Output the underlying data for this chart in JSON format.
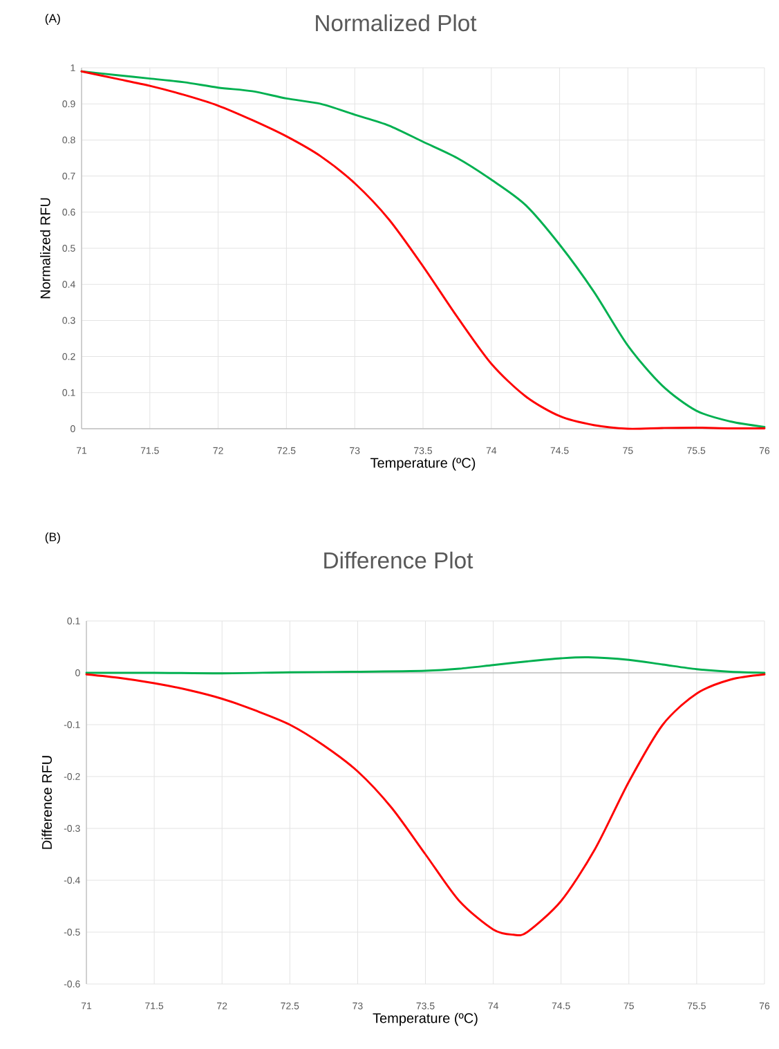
{
  "chart_data": [
    {
      "type": "line",
      "title": "Normalized Plot",
      "xlabel": "Temperature (ºC)",
      "ylabel": "Normalized RFU",
      "annotations": [
        "(A)"
      ],
      "xlim": [
        71,
        76
      ],
      "xticks": [
        71,
        71.5,
        72,
        72.5,
        73,
        73.5,
        74,
        74.5,
        75,
        75.5,
        76
      ],
      "ylim": [
        0,
        1
      ],
      "yticks": [
        0,
        0.1,
        0.2,
        0.3,
        0.4,
        0.5,
        0.6,
        0.7,
        0.8,
        0.9,
        1
      ],
      "grid": true,
      "x": [
        71,
        71.25,
        71.5,
        71.75,
        72,
        72.25,
        72.5,
        72.75,
        73,
        73.25,
        73.5,
        73.75,
        74,
        74.25,
        74.5,
        74.75,
        75,
        75.25,
        75.5,
        75.75,
        76
      ],
      "series": [
        {
          "color": "#00b050",
          "values": [
            0.99,
            0.98,
            0.97,
            0.96,
            0.945,
            0.935,
            0.915,
            0.9,
            0.87,
            0.84,
            0.795,
            0.75,
            0.69,
            0.62,
            0.51,
            0.38,
            0.23,
            0.12,
            0.05,
            0.02,
            0.005
          ]
        },
        {
          "color": "#ff0000",
          "values": [
            0.99,
            0.97,
            0.95,
            0.925,
            0.895,
            0.855,
            0.81,
            0.755,
            0.68,
            0.58,
            0.45,
            0.31,
            0.18,
            0.09,
            0.035,
            0.01,
            0.0,
            0.002,
            0.003,
            0.001,
            0.001
          ]
        }
      ]
    },
    {
      "type": "line",
      "title": "Difference Plot",
      "xlabel": "Temperature (ºC)",
      "ylabel": "Difference RFU",
      "annotations": [
        "(B)"
      ],
      "xlim": [
        71,
        76
      ],
      "xticks": [
        71,
        71.5,
        72,
        72.5,
        73,
        73.5,
        74,
        74.5,
        75,
        75.5,
        76
      ],
      "ylim": [
        -0.6,
        0.1
      ],
      "yticks": [
        -0.6,
        -0.5,
        -0.4,
        -0.3,
        -0.2,
        -0.1,
        0,
        0.1
      ],
      "grid": true,
      "series": [
        {
          "color": "#00b050",
          "x": [
            71,
            71.5,
            72,
            72.5,
            73,
            73.5,
            73.75,
            74,
            74.25,
            74.5,
            74.7,
            75,
            75.25,
            75.5,
            75.75,
            76
          ],
          "values": [
            0,
            0,
            -0.001,
            0.001,
            0.002,
            0.004,
            0.008,
            0.015,
            0.022,
            0.028,
            0.03,
            0.025,
            0.016,
            0.007,
            0.002,
            0
          ]
        },
        {
          "color": "#ff0000",
          "x": [
            71,
            71.25,
            71.5,
            71.75,
            72,
            72.25,
            72.5,
            72.75,
            73,
            73.25,
            73.5,
            73.75,
            74,
            74.15,
            74.25,
            74.5,
            74.75,
            75,
            75.25,
            75.5,
            75.75,
            76
          ],
          "values": [
            -0.003,
            -0.01,
            -0.02,
            -0.033,
            -0.05,
            -0.073,
            -0.1,
            -0.14,
            -0.19,
            -0.26,
            -0.35,
            -0.44,
            -0.495,
            -0.505,
            -0.5,
            -0.44,
            -0.34,
            -0.21,
            -0.1,
            -0.04,
            -0.013,
            -0.003
          ]
        }
      ]
    }
  ]
}
